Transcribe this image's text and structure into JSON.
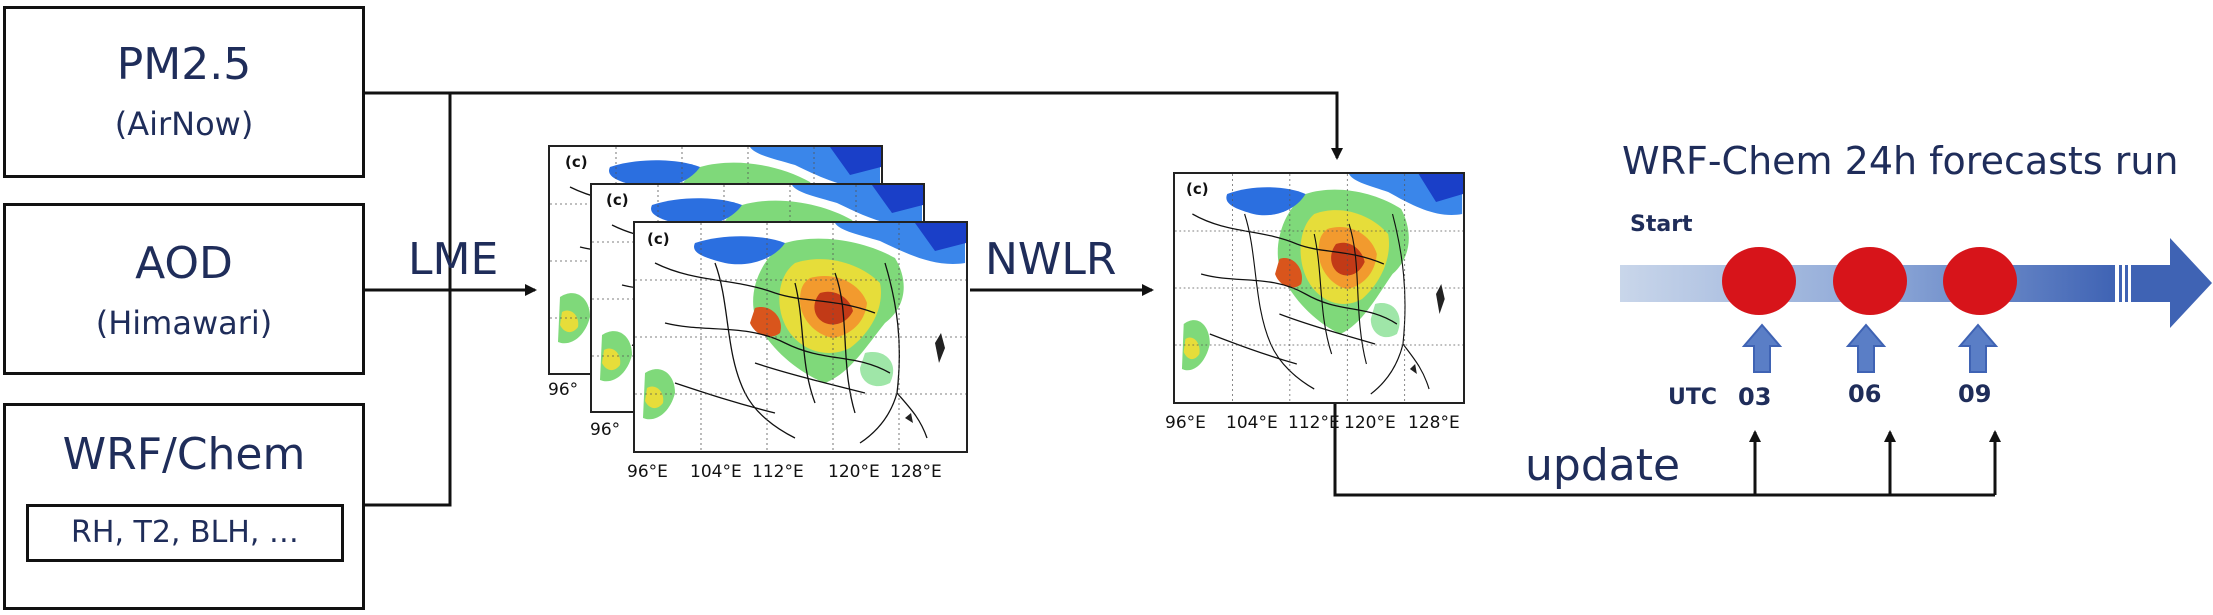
{
  "inputs": {
    "pm25": {
      "title": "PM2.5",
      "source": "(AirNow)"
    },
    "aod": {
      "title": "AOD",
      "source": "(Himawari)"
    },
    "wrf": {
      "title": "WRF/Chem",
      "vars": "RH, T2, BLH, …"
    }
  },
  "methods": {
    "lme": "LME",
    "nwlr": "NWLR",
    "update": "update"
  },
  "map_panel_tag": "(c)",
  "lon_ticks": [
    "96°E",
    "104°E",
    "112°E",
    "120°E",
    "128°E"
  ],
  "lon_tick_partial": "96°",
  "forecast": {
    "title": "WRF-Chem 24h forecasts run",
    "start_label": "Start",
    "utc_label": "UTC",
    "hours": [
      "03",
      "06",
      "09"
    ],
    "colors": {
      "dot": "#d7141a",
      "arrow_light": "#c9d6ea",
      "arrow_dark": "#3f63b4",
      "up_arrow": "#5a7ec6"
    }
  }
}
